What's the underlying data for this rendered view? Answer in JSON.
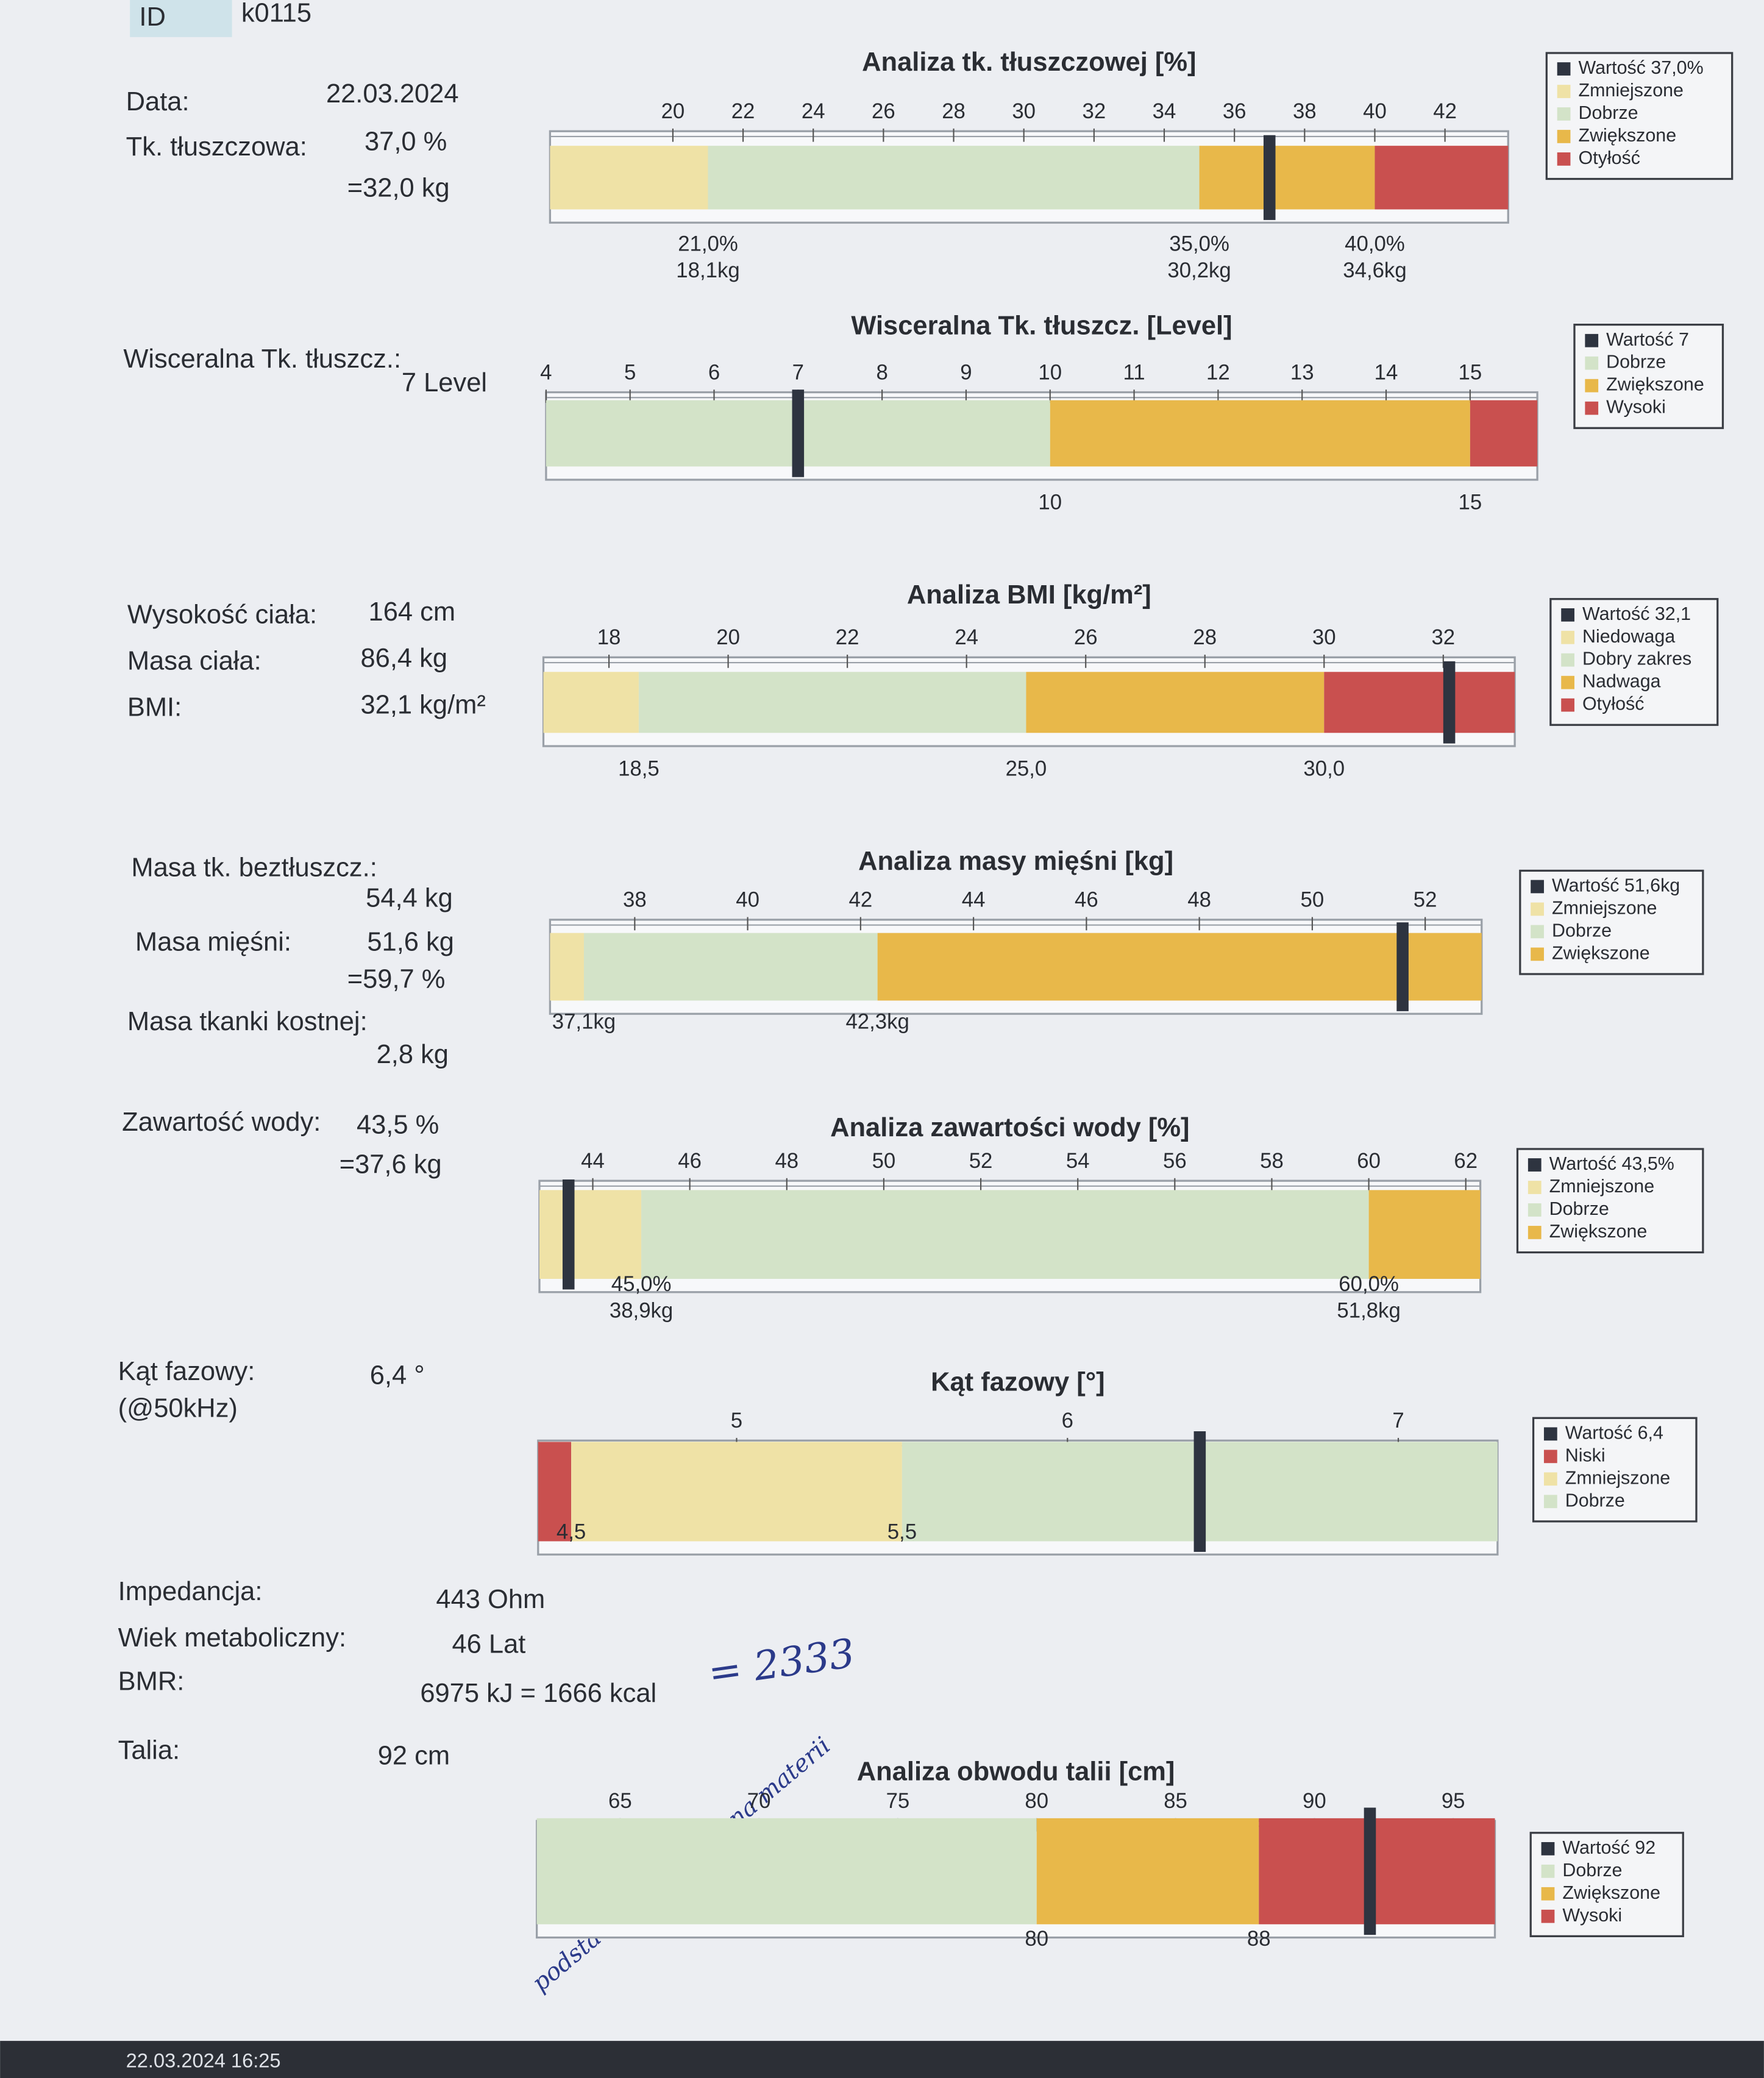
{
  "header": {
    "id_label": "ID",
    "id_value": "k0115"
  },
  "fields": [
    {
      "label": "Data:",
      "value": "22.03.2024"
    },
    {
      "label": "Tk. tłuszczowa:",
      "value": "37,0 %",
      "value2": "=32,0 kg"
    },
    {
      "label": "Wisceralna Tk. tłuszcz.:",
      "value": "7 Level"
    },
    {
      "label": "Wysokość ciała:",
      "value": "164 cm"
    },
    {
      "label": "Masa ciała:",
      "value": "86,4 kg"
    },
    {
      "label": "BMI:",
      "value": "32,1 kg/m²"
    },
    {
      "label": "Masa tk. beztłuszcz.:",
      "value": "54,4 kg"
    },
    {
      "label": "Masa mięśni:",
      "value": "51,6 kg",
      "value2": "=59,7 %"
    },
    {
      "label": "Masa tkanki kostnej:",
      "value": "2,8 kg"
    },
    {
      "label": "Zawartość wody:",
      "value": "43,5 %",
      "value2": "=37,6 kg"
    },
    {
      "label": "Kąt fazowy:",
      "value": "6,4 °",
      "value2": "(@50kHz)"
    },
    {
      "label": "Impedancja:",
      "value": "443 Ohm"
    },
    {
      "label": "Wiek metaboliczny:",
      "value": "46 Lat"
    },
    {
      "label": "BMR:",
      "value": "6975 kJ = 1666 kcal"
    },
    {
      "label": "Talia:",
      "value": "92 cm"
    }
  ],
  "annotations": {
    "bmr_note": "= 2333",
    "handwritten": "podstawowa przemiana materii",
    "footer": "22.03.2024 16:25"
  },
  "chart_data": [
    {
      "type": "gauge",
      "title": "Analiza tk. tłuszczowej [%]",
      "xlim": [
        16.5,
        43.8
      ],
      "xticks": [
        20,
        22,
        24,
        26,
        28,
        30,
        32,
        34,
        36,
        38,
        40,
        42
      ],
      "thresholds": [
        {
          "value": 21,
          "label": "21,0%",
          "sublabel": "18,1kg"
        },
        {
          "value": 35,
          "label": "35,0%",
          "sublabel": "30,2kg"
        },
        {
          "value": 40,
          "label": "40,0%",
          "sublabel": "34,6kg"
        }
      ],
      "bands": [
        "#efe2a6",
        "#d3e3c8",
        "#e8b84a",
        "#c9504f"
      ],
      "value": 37,
      "legend": [
        {
          "name": "Wartość 37,0%",
          "color": "#2e3440"
        },
        {
          "name": "Zmniejszone",
          "color": "#efe2a6"
        },
        {
          "name": "Dobrze",
          "color": "#d3e3c8"
        },
        {
          "name": "Zwiększone",
          "color": "#e8b84a"
        },
        {
          "name": "Otyłość",
          "color": "#c9504f"
        }
      ]
    },
    {
      "type": "gauge",
      "title": "Wisceralna Tk. tłuszcz. [Level]",
      "xlim": [
        4,
        15.8
      ],
      "xticks": [
        4,
        5,
        6,
        7,
        8,
        9,
        10,
        11,
        12,
        13,
        14,
        15
      ],
      "thresholds": [
        10,
        15
      ],
      "bands": [
        "#d3e3c8",
        "#e8b84a",
        "#c9504f"
      ],
      "value": 7,
      "legend": [
        {
          "name": "Wartość 7",
          "color": "#2e3440"
        },
        {
          "name": "Dobrze",
          "color": "#d3e3c8"
        },
        {
          "name": "Zwiększone",
          "color": "#e8b84a"
        },
        {
          "name": "Wysoki",
          "color": "#c9504f"
        }
      ]
    },
    {
      "type": "gauge",
      "title": "Analiza BMI [kg/m²]",
      "xlim": [
        16.9,
        33.2
      ],
      "xticks": [
        18,
        20,
        22,
        24,
        26,
        28,
        30,
        32
      ],
      "thresholds": [
        {
          "value": 18.5,
          "label": "18,5"
        },
        {
          "value": 25,
          "label": "25,0"
        },
        {
          "value": 30,
          "label": "30,0"
        }
      ],
      "bands": [
        "#efe2a6",
        "#d3e3c8",
        "#e8b84a",
        "#c9504f"
      ],
      "value": 32.1,
      "legend": [
        {
          "name": "Wartość 32,1",
          "color": "#2e3440"
        },
        {
          "name": "Niedowaga",
          "color": "#efe2a6"
        },
        {
          "name": "Dobry zakres",
          "color": "#d3e3c8"
        },
        {
          "name": "Nadwaga",
          "color": "#e8b84a"
        },
        {
          "name": "Otyłość",
          "color": "#c9504f"
        }
      ]
    },
    {
      "type": "gauge",
      "title": "Analiza masy mięśni [kg]",
      "xlim": [
        36.5,
        53
      ],
      "xticks": [
        38,
        40,
        42,
        44,
        46,
        48,
        50,
        52
      ],
      "thresholds": [
        {
          "value": 37.1,
          "label": "37,1kg"
        },
        {
          "value": 42.3,
          "label": "42,3kg"
        }
      ],
      "bands": [
        "#efe2a6",
        "#d3e3c8",
        "#e8b84a"
      ],
      "value": 51.6,
      "legend": [
        {
          "name": "Wartość 51,6kg",
          "color": "#2e3440"
        },
        {
          "name": "Zmniejszone",
          "color": "#efe2a6"
        },
        {
          "name": "Dobrze",
          "color": "#d3e3c8"
        },
        {
          "name": "Zwiększone",
          "color": "#e8b84a"
        }
      ]
    },
    {
      "type": "gauge",
      "title": "Analiza zawartości wody [%]",
      "xlim": [
        42.9,
        62.3
      ],
      "xticks": [
        44,
        46,
        48,
        50,
        52,
        54,
        56,
        58,
        60,
        62
      ],
      "thresholds": [
        {
          "value": 45,
          "label": "45,0%",
          "sublabel": "38,9kg"
        },
        {
          "value": 60,
          "label": "60,0%",
          "sublabel": "51,8kg"
        }
      ],
      "bands": [
        "#efe2a6",
        "#d3e3c8",
        "#e8b84a"
      ],
      "value": 43.5,
      "legend": [
        {
          "name": "Wartość 43,5%",
          "color": "#2e3440"
        },
        {
          "name": "Zmniejszone",
          "color": "#efe2a6"
        },
        {
          "name": "Dobrze",
          "color": "#d3e3c8"
        },
        {
          "name": "Zwiększone",
          "color": "#e8b84a"
        }
      ]
    },
    {
      "type": "gauge",
      "title": "Kąt fazowy [°]",
      "xlim": [
        4.4,
        7.3
      ],
      "xticks": [
        5,
        6,
        7
      ],
      "thresholds": [
        {
          "value": 4.5,
          "label": "4,5"
        },
        {
          "value": 5.5,
          "label": "5,5"
        }
      ],
      "bands": [
        "#c9504f",
        "#efe2a6",
        "#d3e3c8"
      ],
      "value": 6.4,
      "legend": [
        {
          "name": "Wartość 6,4",
          "color": "#2e3440"
        },
        {
          "name": "Niski",
          "color": "#c9504f"
        },
        {
          "name": "Zmniejszone",
          "color": "#efe2a6"
        },
        {
          "name": "Dobrze",
          "color": "#d3e3c8"
        }
      ]
    },
    {
      "type": "gauge",
      "title": "Analiza obwodu talii [cm]",
      "xlim": [
        62,
        96.5
      ],
      "xticks": [
        65,
        70,
        75,
        80,
        85,
        90,
        95
      ],
      "thresholds": [
        80,
        88
      ],
      "bands": [
        "#d3e3c8",
        "#e8b84a",
        "#c9504f"
      ],
      "value": 92,
      "legend": [
        {
          "name": "Wartość 92",
          "color": "#2e3440"
        },
        {
          "name": "Dobrze",
          "color": "#d3e3c8"
        },
        {
          "name": "Zwiększone",
          "color": "#e8b84a"
        },
        {
          "name": "Wysoki",
          "color": "#c9504f"
        }
      ]
    }
  ]
}
